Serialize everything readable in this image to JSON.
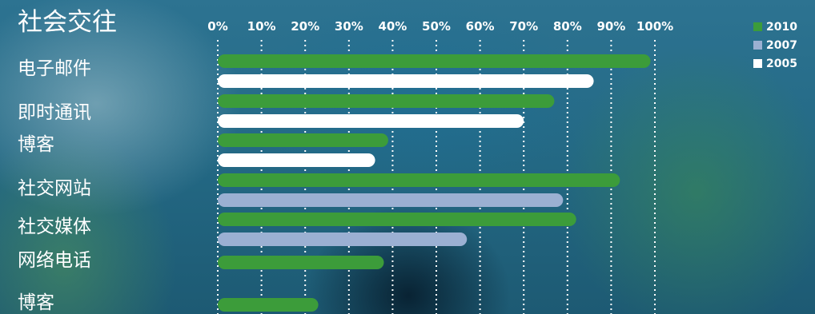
{
  "chart_data": {
    "type": "bar",
    "orientation": "horizontal",
    "title": "社会交往",
    "categories": [
      "电子邮件",
      "即时通讯",
      "博客",
      "社交网站",
      "社交媒体",
      "网络电话",
      "博客"
    ],
    "x_ticks": [
      "0%",
      "10%",
      "20%",
      "30%",
      "40%",
      "50%",
      "60%",
      "70%",
      "80%",
      "90%",
      "100%"
    ],
    "xlim": [
      0,
      100
    ],
    "grid": "vertical dotted",
    "legend_position": "top-right",
    "series": [
      {
        "name": "2010",
        "color": "#3c9c3a",
        "values": [
          99,
          77,
          39,
          92,
          82,
          38,
          23
        ]
      },
      {
        "name": "2007",
        "color": "#9bb0d2",
        "values": [
          null,
          null,
          null,
          79,
          57,
          null,
          null
        ]
      },
      {
        "name": "2005",
        "color": "#ffffff",
        "values": [
          86,
          70,
          36,
          null,
          null,
          null,
          null
        ]
      }
    ]
  }
}
